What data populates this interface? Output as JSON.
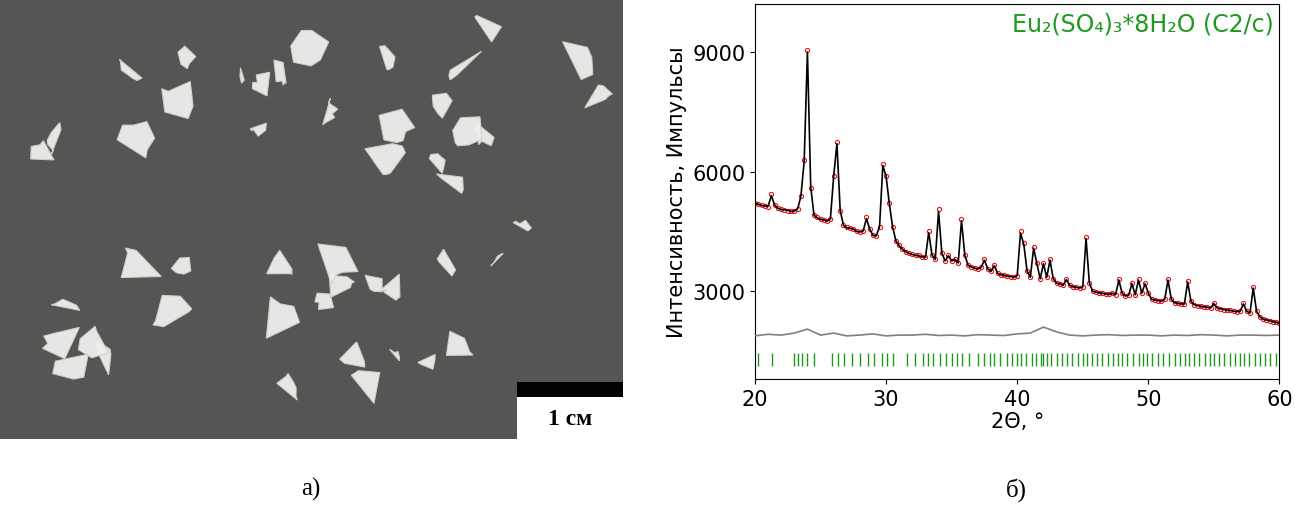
{
  "photo": {
    "label": "а)",
    "scale_bar": "1 см"
  },
  "chart_data": {
    "type": "line",
    "title": "Eu₂(SO₄)₃*8H₂O (C2/c)",
    "x_label": "2Θ, °",
    "y_label": "Интенсивность, Импульсы",
    "annotations": [
      "б)"
    ],
    "xlim": [
      20,
      60
    ],
    "ylim": [
      800,
      10200
    ],
    "xticks": [
      20,
      30,
      40,
      50,
      60
    ],
    "yticks": [
      3000,
      6000,
      9000
    ],
    "series": [
      {
        "type": "scatter",
        "color": "#e8141c",
        "marker": "o",
        "x": [
          20.0,
          20.25,
          20.5,
          20.75,
          21.0,
          21.25,
          21.5,
          21.75,
          22.0,
          22.25,
          22.5,
          22.75,
          23.0,
          23.25,
          23.5,
          23.75,
          24.0,
          24.25,
          24.5,
          24.75,
          25.0,
          25.25,
          25.5,
          25.75,
          26.0,
          26.25,
          26.5,
          26.75,
          27.0,
          27.25,
          27.5,
          27.75,
          28.0,
          28.25,
          28.5,
          28.75,
          29.0,
          29.25,
          29.5,
          29.75,
          30.0,
          30.25,
          30.5,
          30.75,
          31.0,
          31.25,
          31.5,
          31.75,
          32.0,
          32.25,
          32.5,
          32.75,
          33.0,
          33.25,
          33.5,
          33.75,
          34.0,
          34.25,
          34.5,
          34.75,
          35.0,
          35.25,
          35.5,
          35.75,
          36.0,
          36.25,
          36.5,
          36.75,
          37.0,
          37.25,
          37.5,
          37.75,
          38.0,
          38.25,
          38.5,
          38.75,
          39.0,
          39.25,
          39.5,
          39.75,
          40.0,
          40.25,
          40.5,
          40.75,
          41.0,
          41.25,
          41.5,
          41.75,
          42.0,
          42.25,
          42.5,
          42.75,
          43.0,
          43.25,
          43.5,
          43.75,
          44.0,
          44.25,
          44.5,
          44.75,
          45.0,
          45.25,
          45.5,
          45.75,
          46.0,
          46.25,
          46.5,
          46.75,
          47.0,
          47.25,
          47.5,
          47.75,
          48.0,
          48.25,
          48.5,
          48.75,
          49.0,
          49.25,
          49.5,
          49.75,
          50.0,
          50.25,
          50.5,
          50.75,
          51.0,
          51.25,
          51.5,
          51.75,
          52.0,
          52.25,
          52.5,
          52.75,
          53.0,
          53.25,
          53.5,
          53.75,
          54.0,
          54.25,
          54.5,
          54.75,
          55.0,
          55.25,
          55.5,
          55.75,
          56.0,
          56.25,
          56.5,
          56.75,
          57.0,
          57.25,
          57.5,
          57.75,
          58.0,
          58.25,
          58.5,
          58.75,
          59.0,
          59.25,
          59.5,
          59.75,
          60.0
        ],
        "values": [
          5200,
          5180,
          5160,
          5140,
          5120,
          5450,
          5150,
          5080,
          5060,
          5040,
          5020,
          5000,
          5000,
          5050,
          5400,
          6300,
          9050,
          5600,
          4900,
          4850,
          4800,
          4780,
          4760,
          4800,
          5900,
          6750,
          5000,
          4650,
          4600,
          4580,
          4550,
          4500,
          4480,
          4500,
          4850,
          4550,
          4400,
          4380,
          4600,
          6200,
          5900,
          5200,
          4600,
          4250,
          4150,
          4050,
          3980,
          3950,
          3930,
          3900,
          3900,
          3850,
          3850,
          4500,
          3900,
          3800,
          5050,
          3950,
          3750,
          3900,
          3750,
          3800,
          3700,
          4800,
          3900,
          3650,
          3600,
          3580,
          3550,
          3600,
          3800,
          3550,
          3500,
          3650,
          3450,
          3400,
          3400,
          3380,
          3360,
          3350,
          3380,
          4500,
          4200,
          3500,
          3350,
          4100,
          3700,
          3300,
          3700,
          3350,
          3800,
          3300,
          3200,
          3180,
          3150,
          3300,
          3150,
          3100,
          3100,
          3080,
          3100,
          4350,
          3200,
          3000,
          2980,
          2950,
          2950,
          2930,
          2920,
          2950,
          2900,
          3300,
          2950,
          2880,
          2900,
          3200,
          2900,
          3300,
          2950,
          3200,
          2950,
          2800,
          2780,
          2760,
          2750,
          2800,
          3300,
          2800,
          2700,
          2700,
          2680,
          2680,
          3250,
          2750,
          2650,
          2640,
          2620,
          2600,
          2600,
          2580,
          2700,
          2580,
          2560,
          2540,
          2530,
          2520,
          2500,
          2490,
          2500,
          2700,
          2500,
          2450,
          3100,
          2500,
          2350,
          2300,
          2280,
          2260,
          2240,
          2220,
          2200
        ]
      },
      {
        "type": "line",
        "color": "#000000",
        "line_style": "solid",
        "x": [
          20.0,
          20.25,
          20.5,
          20.75,
          21.0,
          21.25,
          21.5,
          21.75,
          22.0,
          22.25,
          22.5,
          22.75,
          23.0,
          23.25,
          23.5,
          23.75,
          24.0,
          24.25,
          24.5,
          24.75,
          25.0,
          25.25,
          25.5,
          25.75,
          26.0,
          26.25,
          26.5,
          26.75,
          27.0,
          27.25,
          27.5,
          27.75,
          28.0,
          28.25,
          28.5,
          28.75,
          29.0,
          29.25,
          29.5,
          29.75,
          30.0,
          30.25,
          30.5,
          30.75,
          31.0,
          31.25,
          31.5,
          31.75,
          32.0,
          32.25,
          32.5,
          32.75,
          33.0,
          33.25,
          33.5,
          33.75,
          34.0,
          34.25,
          34.5,
          34.75,
          35.0,
          35.25,
          35.5,
          35.75,
          36.0,
          36.25,
          36.5,
          36.75,
          37.0,
          37.25,
          37.5,
          37.75,
          38.0,
          38.25,
          38.5,
          38.75,
          39.0,
          39.25,
          39.5,
          39.75,
          40.0,
          40.25,
          40.5,
          40.75,
          41.0,
          41.25,
          41.5,
          41.75,
          42.0,
          42.25,
          42.5,
          42.75,
          43.0,
          43.25,
          43.5,
          43.75,
          44.0,
          44.25,
          44.5,
          44.75,
          45.0,
          45.25,
          45.5,
          45.75,
          46.0,
          46.25,
          46.5,
          46.75,
          47.0,
          47.25,
          47.5,
          47.75,
          48.0,
          48.25,
          48.5,
          48.75,
          49.0,
          49.25,
          49.5,
          49.75,
          50.0,
          50.25,
          50.5,
          50.75,
          51.0,
          51.25,
          51.5,
          51.75,
          52.0,
          52.25,
          52.5,
          52.75,
          53.0,
          53.25,
          53.5,
          53.75,
          54.0,
          54.25,
          54.5,
          54.75,
          55.0,
          55.25,
          55.5,
          55.75,
          56.0,
          56.25,
          56.5,
          56.75,
          57.0,
          57.25,
          57.5,
          57.75,
          58.0,
          58.25,
          58.5,
          58.75,
          59.0,
          59.25,
          59.5,
          59.75,
          60.0
        ],
        "values": [
          5210,
          5180,
          5150,
          5140,
          5130,
          5400,
          5160,
          5080,
          5050,
          5040,
          5030,
          5000,
          5010,
          5060,
          5380,
          6250,
          9000,
          5620,
          4910,
          4840,
          4800,
          4790,
          4760,
          4810,
          5880,
          6700,
          5020,
          4650,
          4590,
          4580,
          4560,
          4500,
          4490,
          4510,
          4820,
          4560,
          4400,
          4390,
          4620,
          6150,
          5880,
          5180,
          4610,
          4260,
          4140,
          4050,
          3990,
          3950,
          3920,
          3900,
          3890,
          3860,
          3850,
          4470,
          3910,
          3800,
          5000,
          3960,
          3760,
          3890,
          3760,
          3800,
          3710,
          4770,
          3910,
          3650,
          3610,
          3580,
          3560,
          3600,
          3780,
          3560,
          3500,
          3640,
          3450,
          3410,
          3400,
          3380,
          3370,
          3350,
          3390,
          4460,
          4180,
          3510,
          3350,
          4080,
          3700,
          3310,
          3690,
          3350,
          3780,
          3310,
          3200,
          3190,
          3150,
          3290,
          3150,
          3110,
          3100,
          3080,
          3110,
          4320,
          3210,
          3000,
          2980,
          2960,
          2950,
          2930,
          2920,
          2950,
          2910,
          3280,
          2950,
          2880,
          2900,
          3190,
          2910,
          3280,
          2950,
          3190,
          2950,
          2800,
          2780,
          2770,
          2750,
          2800,
          3280,
          2800,
          2710,
          2700,
          2680,
          2680,
          3230,
          2750,
          2660,
          2640,
          2620,
          2610,
          2600,
          2580,
          2690,
          2580,
          2560,
          2540,
          2530,
          2520,
          2500,
          2490,
          2500,
          2680,
          2500,
          2450,
          3080,
          2500,
          2360,
          2300,
          2280,
          2260,
          2240,
          2220,
          2200
        ]
      },
      {
        "type": "line",
        "color": "#808080",
        "line_style": "solid",
        "x": [
          20,
          21,
          22,
          23,
          24,
          25,
          26,
          27,
          28,
          29,
          30,
          31,
          32,
          33,
          34,
          35,
          36,
          37,
          38,
          39,
          40,
          41,
          42,
          43,
          44,
          45,
          46,
          47,
          48,
          49,
          50,
          51,
          52,
          53,
          54,
          55,
          56,
          57,
          58,
          59,
          60
        ],
        "values": [
          1880,
          1920,
          1900,
          1950,
          2050,
          1900,
          1950,
          1880,
          1900,
          1930,
          1880,
          1900,
          1900,
          1920,
          1890,
          1900,
          1880,
          1910,
          1900,
          1890,
          1930,
          1950,
          2100,
          1980,
          1900,
          1880,
          1900,
          1910,
          1890,
          1900,
          1900,
          1880,
          1900,
          1890,
          1910,
          1900,
          1880,
          1900,
          1900,
          1890,
          1900
        ]
      },
      {
        "type": "ticks",
        "color": "#1f9a1f",
        "x": [
          20.2,
          21.3,
          23.0,
          23.3,
          23.6,
          24.0,
          24.5,
          25.9,
          26.3,
          26.8,
          27.4,
          28.0,
          28.6,
          29.1,
          29.7,
          30.1,
          30.5,
          31.6,
          32.2,
          32.8,
          33.2,
          33.6,
          34.1,
          34.6,
          35.0,
          35.4,
          35.8,
          36.3,
          37.0,
          37.5,
          37.9,
          38.2,
          38.7,
          39.2,
          39.6,
          40.0,
          40.3,
          40.7,
          41.1,
          41.4,
          41.8,
          42.0,
          42.3,
          42.6,
          43.0,
          43.4,
          43.8,
          44.2,
          44.6,
          45.0,
          45.3,
          45.7,
          46.1,
          46.5,
          46.9,
          47.3,
          47.7,
          48.0,
          48.4,
          48.8,
          49.3,
          49.6,
          49.9,
          50.3,
          50.7,
          51.1,
          51.6,
          52.0,
          52.4,
          52.8,
          53.1,
          53.5,
          53.9,
          54.3,
          54.7,
          55.0,
          55.4,
          55.8,
          56.2,
          56.6,
          57.0,
          57.3,
          57.7,
          58.1,
          58.5,
          58.9,
          59.3,
          59.7
        ]
      }
    ]
  }
}
